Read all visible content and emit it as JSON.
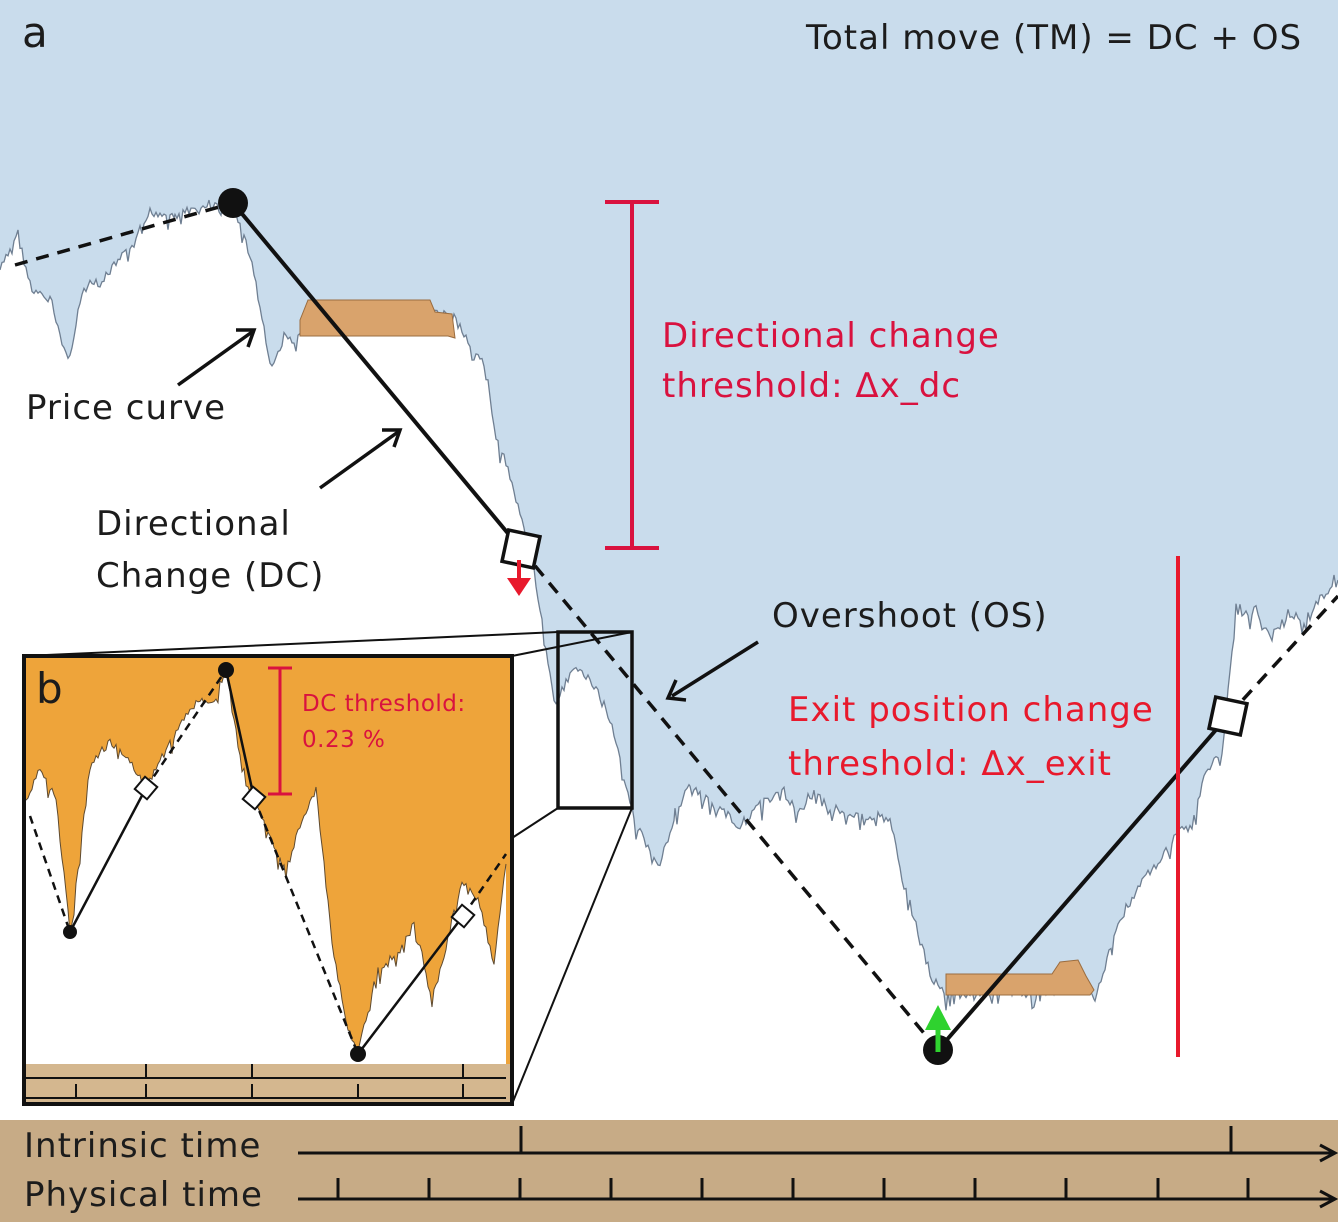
{
  "panel_a": {
    "letter": "a",
    "formula": "Total move (TM) = DC + OS",
    "price_curve_label": "Price curve",
    "dc_label_line1": "Directional",
    "dc_label_line2": "Change (DC)",
    "dc_threshold_line1": "Directional change",
    "dc_threshold_line2": "threshold:  Δx_dc",
    "overshoot_label": "Overshoot (OS)",
    "exit_line1": "Exit position change",
    "exit_line2": "threshold:  Δx_exit"
  },
  "panel_b": {
    "letter": "b",
    "threshold_line1": "DC threshold:",
    "threshold_line2": "0.23 %"
  },
  "time_axes": {
    "intrinsic": "Intrinsic time",
    "physical": "Physical time"
  },
  "colors": {
    "sky": "#c9dcec",
    "price": "#6f7f92",
    "overshoot_fill": "#d9a36c",
    "inset_fill": "#eea43a",
    "threshold_red": "#d9123f",
    "exit_red": "#e8192c",
    "time_bar": "#c7ab86",
    "up_arrow": "#2fd22f"
  }
}
